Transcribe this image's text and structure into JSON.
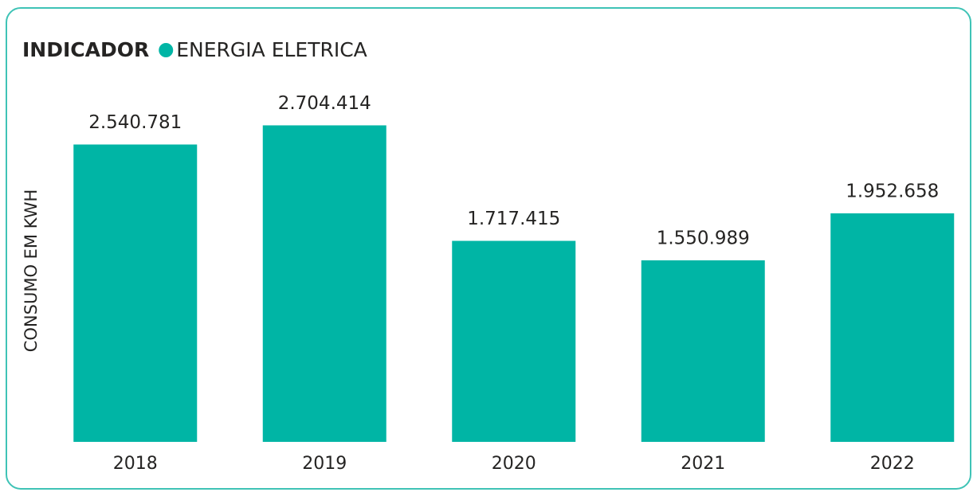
{
  "chart_data": {
    "type": "bar",
    "legend_title": "INDICADOR",
    "y_label": "CONSUMO EM KWH",
    "categories": [
      "2018",
      "2019",
      "2020",
      "2021",
      "2022"
    ],
    "series": [
      {
        "name": "ENERGIA ELETRICA",
        "color": "#00b5a5",
        "values": [
          2540781,
          2704414,
          1717415,
          1550989,
          1952658
        ],
        "value_labels": [
          "2.540.781",
          "2.704.414",
          "1.717.415",
          "1.550.989",
          "1.952.658"
        ]
      }
    ],
    "ylim": [
      0,
      3000000
    ]
  }
}
